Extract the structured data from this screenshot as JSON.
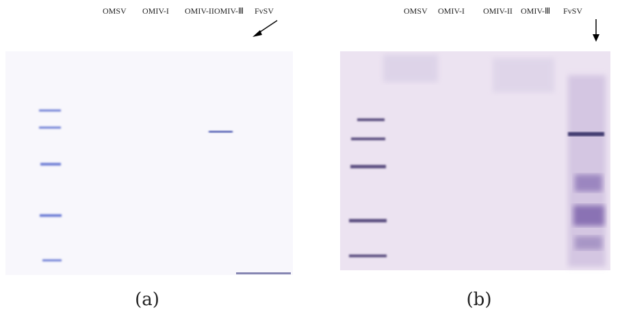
{
  "panels": [
    {
      "lane_labels": [
        "OMSV",
        "OMIV-I",
        "OMIV-II",
        "OMIV-Ⅲ",
        "FvSV"
      ],
      "caption": "(a)"
    },
    {
      "lane_labels": [
        "OMSV",
        "OMIV-I",
        "OMIV-II",
        "OMIV-Ⅲ",
        "FvSV"
      ],
      "caption": "(b)"
    }
  ]
}
